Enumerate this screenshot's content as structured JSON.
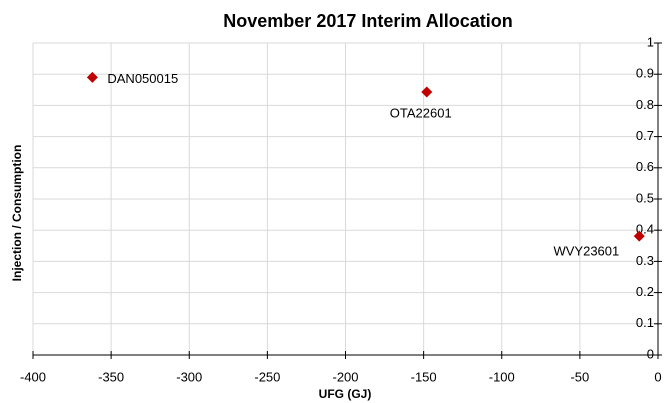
{
  "chart_data": {
    "type": "scatter",
    "title": "November 2017 Interim Allocation",
    "x_label": "UFG (GJ)",
    "y_label": "Injection / Consumption",
    "x": [
      -362,
      -148,
      -12
    ],
    "values": [
      0.89,
      0.843,
      0.381
    ],
    "labels": [
      "DAN050015",
      "OTA22601",
      "WVY23601"
    ],
    "color": "#c00000",
    "xlim": [
      -400,
      0
    ],
    "xticks": [
      -400,
      -350,
      -300,
      -250,
      -200,
      -150,
      -100,
      -50,
      0
    ],
    "ylim": [
      0,
      1
    ],
    "yticks": [
      0,
      0.1,
      0.2,
      0.3,
      0.4,
      0.5,
      0.6,
      0.7,
      0.8,
      0.9,
      1
    ],
    "grid": true
  }
}
